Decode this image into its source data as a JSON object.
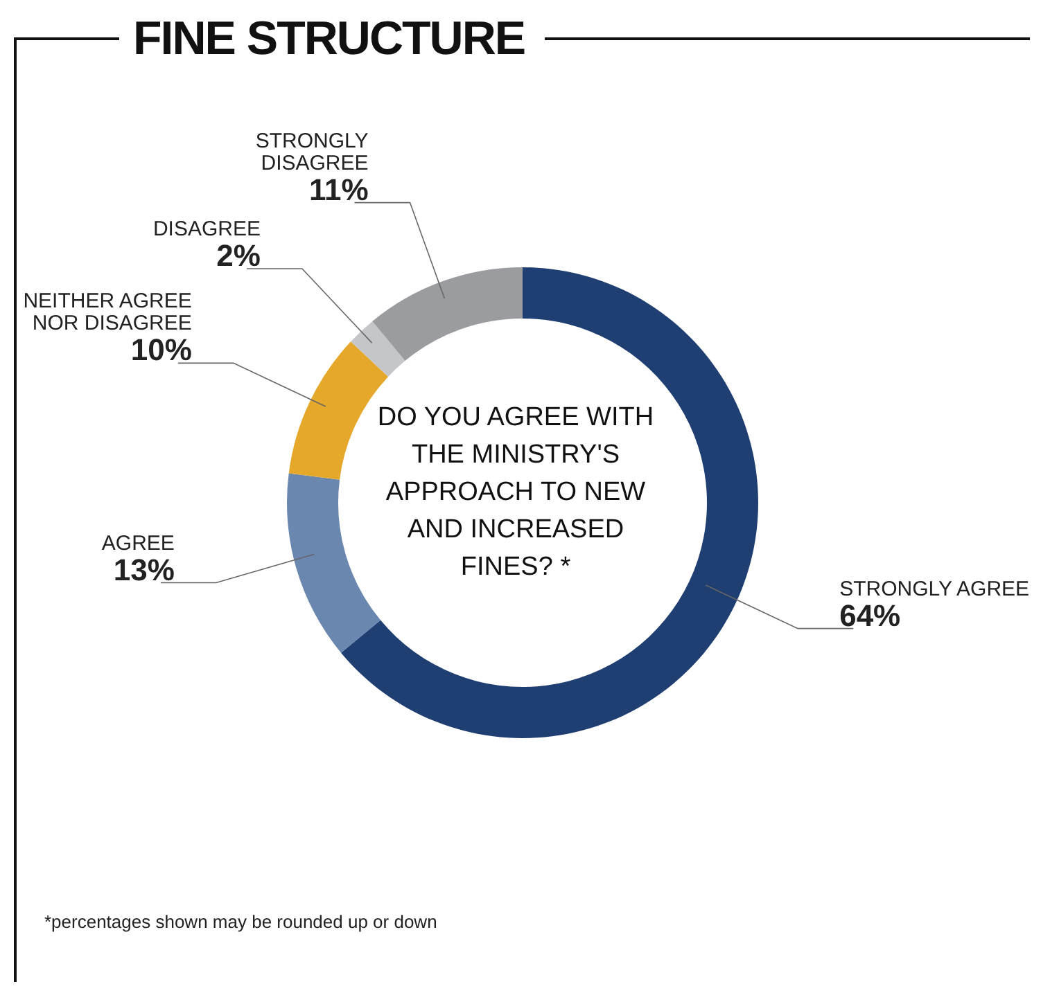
{
  "chart_data": {
    "type": "donut",
    "title": "FINE STRUCTURE",
    "subtitle": "DO YOU AGREE WITH THE MINISTRY'S APPROACH TO NEW AND INCREASED FINES? *",
    "categories": [
      "STRONGLY AGREE",
      "AGREE",
      "NEITHER AGREE NOR DISAGREE",
      "DISAGREE",
      "STRONGLY DISAGREE"
    ],
    "values": [
      64,
      13,
      10,
      2,
      11
    ],
    "value_labels": [
      "64%",
      "13%",
      "10%",
      "2%",
      "11%"
    ],
    "colors": [
      "#1f3f73",
      "#6a87b0",
      "#e6a82b",
      "#c4c6c9",
      "#9a9c9f"
    ],
    "annotations": [
      "*percentages shown may be rounded up or down"
    ]
  }
}
